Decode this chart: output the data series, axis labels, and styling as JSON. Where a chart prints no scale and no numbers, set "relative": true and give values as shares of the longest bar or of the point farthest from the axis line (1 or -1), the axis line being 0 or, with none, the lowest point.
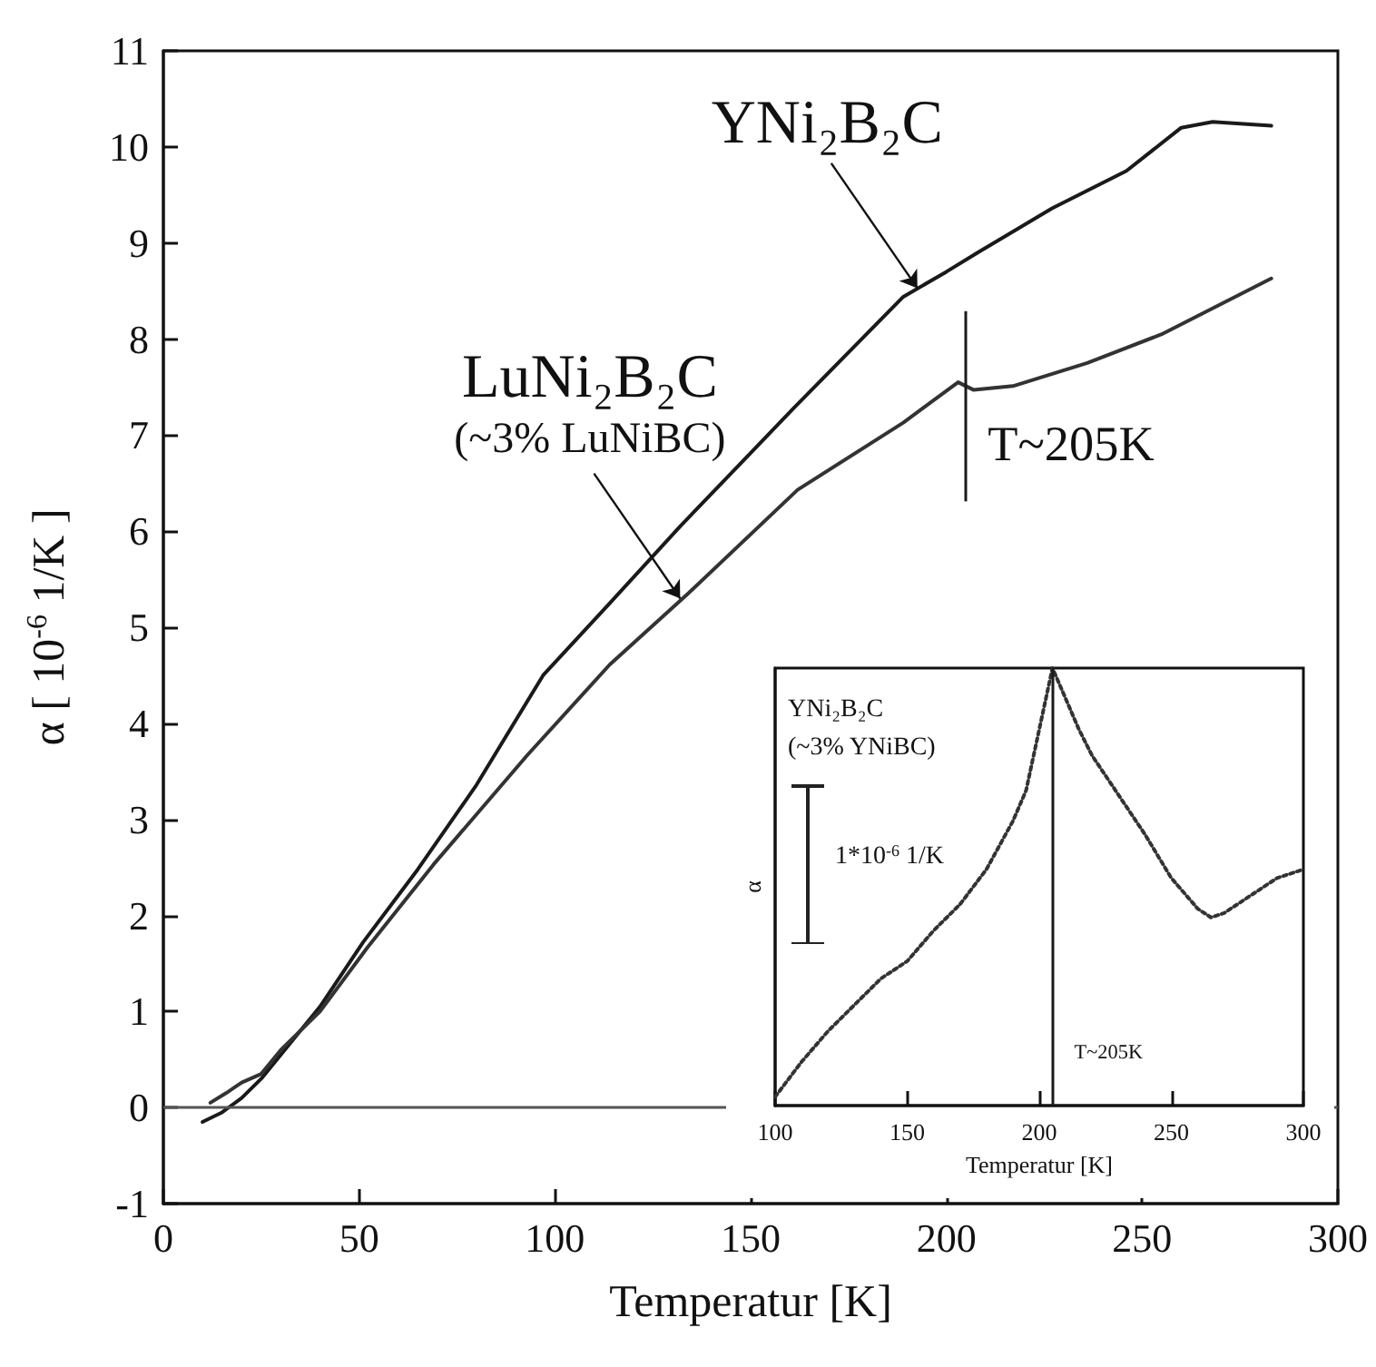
{
  "chart_data": [
    {
      "type": "line",
      "xlabel": "Temperatur [K]",
      "ylabel": "α [ 10$^{-6}$ 1/K ]",
      "xlim": [
        0,
        300
      ],
      "xticks": [
        0,
        50,
        100,
        150,
        200,
        250,
        300
      ],
      "ylim": [
        -1,
        11
      ],
      "yticks": [
        -1,
        0,
        1,
        2,
        3,
        4,
        5,
        6,
        7,
        8,
        9,
        10,
        11
      ],
      "marker": "none",
      "line_style": "solid",
      "series": [
        {
          "color": "#1a1a1a",
          "x": [
            10,
            15,
            20,
            25,
            30,
            40,
            51,
            65,
            80,
            97,
            114,
            132,
            161,
            189,
            200,
            208,
            227,
            246,
            260,
            268,
            283
          ],
          "values": [
            -0.15,
            -0.05,
            0.1,
            0.3,
            0.55,
            1.05,
            1.72,
            2.48,
            3.36,
            4.5,
            5.25,
            6.05,
            7.28,
            8.44,
            8.7,
            8.9,
            9.36,
            9.75,
            10.2,
            10.26,
            10.22
          ]
        },
        {
          "color": "#333333",
          "x": [
            12,
            16,
            20,
            25,
            30,
            40,
            52,
            69,
            93,
            114,
            134,
            162,
            189,
            203,
            207,
            217,
            236,
            255,
            283
          ],
          "values": [
            0.05,
            0.15,
            0.26,
            0.35,
            0.6,
            1.0,
            1.66,
            2.53,
            3.67,
            4.61,
            5.35,
            6.43,
            7.13,
            7.55,
            7.47,
            7.51,
            7.75,
            8.05,
            8.63
          ]
        }
      ],
      "ref_lines": [
        {
          "axis": "y",
          "value": 0,
          "color": "#555555"
        },
        {
          "axis": "x",
          "value": 205,
          "label": "T~205K",
          "color": "#1a1a1a"
        }
      ],
      "annotations": [
        {
          "text": "YNi₂B₂C",
          "x": 192.6,
          "y": 8.53
        },
        {
          "text": "LuNi₂B₂C\n(~3% LuNiBC)",
          "x": 132,
          "y": 5.3
        }
      ]
    },
    {
      "type": "line",
      "relative": true,
      "xlabel": "Temperatur [K]",
      "ylabel": "α",
      "xlim": [
        100,
        300
      ],
      "xticks": [
        100,
        150,
        200,
        250,
        300
      ],
      "tick_labels": "x",
      "marker": "none",
      "line_style": "dotted",
      "series": [
        {
          "color": "#333333",
          "x": [
            100,
            110,
            120,
            130,
            140,
            150,
            160,
            170,
            180,
            190,
            195,
            200,
            205,
            210,
            215,
            220,
            230,
            240,
            250,
            260,
            265,
            270,
            280,
            290,
            300
          ],
          "values": [
            0.02,
            0.1,
            0.17,
            0.23,
            0.29,
            0.33,
            0.4,
            0.46,
            0.54,
            0.65,
            0.72,
            0.86,
            1.0,
            0.93,
            0.86,
            0.8,
            0.71,
            0.62,
            0.52,
            0.45,
            0.43,
            0.44,
            0.48,
            0.52,
            0.54
          ]
        }
      ],
      "ref_lines": [
        {
          "axis": "x",
          "value": 205,
          "label": "T~205K",
          "color": "#1a1a1a"
        }
      ],
      "annotations": [
        "YNi₂B₂C\n(~3% YNiBC)",
        "1*10$^{-6}$ 1/K"
      ]
    }
  ]
}
